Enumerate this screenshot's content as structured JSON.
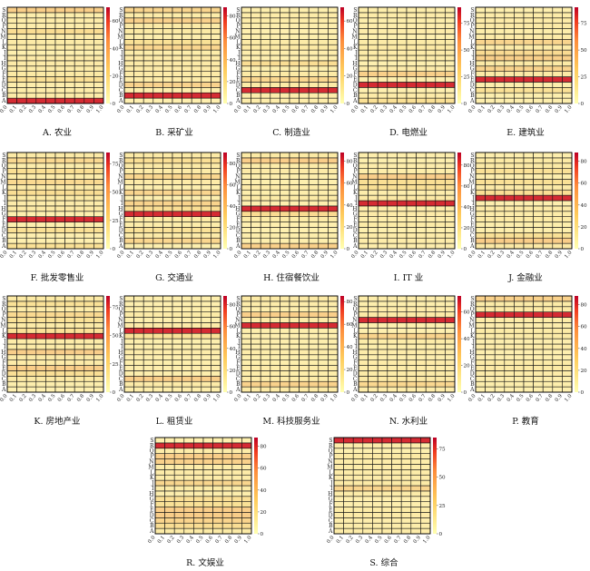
{
  "figure": {
    "row_labels": [
      "A",
      "B",
      "C",
      "D",
      "E",
      "F",
      "G",
      "H",
      "I",
      "J",
      "K",
      "L",
      "M",
      "N",
      "P",
      "Q",
      "R",
      "S"
    ],
    "x_tick_labels": [
      "0.0",
      "0.1",
      "0.2",
      "0.3",
      "0.4",
      "0.5",
      "0.6",
      "0.7",
      "0.8",
      "0.9",
      "1.0"
    ]
  },
  "chart_data": [
    {
      "type": "heatmap",
      "caption": "A. 农业",
      "highlight_row": "A",
      "colorbar_ticks": [
        0,
        20,
        40,
        60
      ],
      "colorbar_max": 70
    },
    {
      "type": "heatmap",
      "caption": "B. 采矿业",
      "highlight_row": "B",
      "colorbar_ticks": [
        0,
        20,
        40,
        60,
        80
      ],
      "colorbar_max": 88
    },
    {
      "type": "heatmap",
      "caption": "C. 制造业",
      "highlight_row": "C",
      "colorbar_ticks": [
        0,
        20,
        40,
        60
      ],
      "colorbar_max": 70
    },
    {
      "type": "heatmap",
      "caption": "D. 电燃业",
      "highlight_row": "D",
      "colorbar_ticks": [
        0,
        25,
        50,
        75
      ],
      "colorbar_max": 90
    },
    {
      "type": "heatmap",
      "caption": "E. 建筑业",
      "highlight_row": "E",
      "colorbar_ticks": [
        0,
        25,
        50,
        75
      ],
      "colorbar_max": 90
    },
    {
      "type": "heatmap",
      "caption": "F. 批发零售业",
      "highlight_row": "F",
      "colorbar_ticks": [
        0,
        25,
        50,
        75
      ],
      "colorbar_max": 85
    },
    {
      "type": "heatmap",
      "caption": "G. 交通业",
      "highlight_row": "G",
      "colorbar_ticks": [
        0,
        20,
        40,
        60,
        80
      ],
      "colorbar_max": 90
    },
    {
      "type": "heatmap",
      "caption": "H. 住宿餐饮业",
      "highlight_row": "H",
      "colorbar_ticks": [
        0,
        20,
        40,
        60,
        80
      ],
      "colorbar_max": 88
    },
    {
      "type": "heatmap",
      "caption": "I. IT 业",
      "highlight_row": "I",
      "colorbar_ticks": [
        0,
        20,
        40,
        60,
        80
      ],
      "colorbar_max": 92
    },
    {
      "type": "heatmap",
      "caption": "J. 金融业",
      "highlight_row": "J",
      "colorbar_ticks": [
        0,
        20,
        40,
        60,
        80
      ],
      "colorbar_max": 88
    },
    {
      "type": "heatmap",
      "caption": "K. 房地产业",
      "highlight_row": "K",
      "colorbar_ticks": [
        0,
        25,
        50,
        75
      ],
      "colorbar_max": 85
    },
    {
      "type": "heatmap",
      "caption": "L. 租赁业",
      "highlight_row": "L",
      "colorbar_ticks": [
        0,
        20,
        40,
        60,
        80
      ],
      "colorbar_max": 88
    },
    {
      "type": "heatmap",
      "caption": "M. 科技服务业",
      "highlight_row": "M",
      "colorbar_ticks": [
        0,
        20,
        40,
        60,
        80
      ],
      "colorbar_max": 85
    },
    {
      "type": "heatmap",
      "caption": "N. 水利业",
      "highlight_row": "N",
      "colorbar_ticks": [
        0,
        20,
        40,
        60
      ],
      "colorbar_max": 72
    },
    {
      "type": "heatmap",
      "caption": "P. 教育",
      "highlight_row": "P",
      "colorbar_ticks": [
        0,
        20,
        40,
        60,
        80
      ],
      "colorbar_max": 88
    },
    {
      "type": "heatmap",
      "caption": "R. 文娱业",
      "highlight_row": "R",
      "colorbar_ticks": [
        0,
        20,
        40,
        60,
        80
      ],
      "colorbar_max": 88
    },
    {
      "type": "heatmap",
      "caption": "S. 综合",
      "highlight_row": "S",
      "colorbar_ticks": [
        0,
        25,
        50,
        75
      ],
      "colorbar_max": 85
    }
  ]
}
